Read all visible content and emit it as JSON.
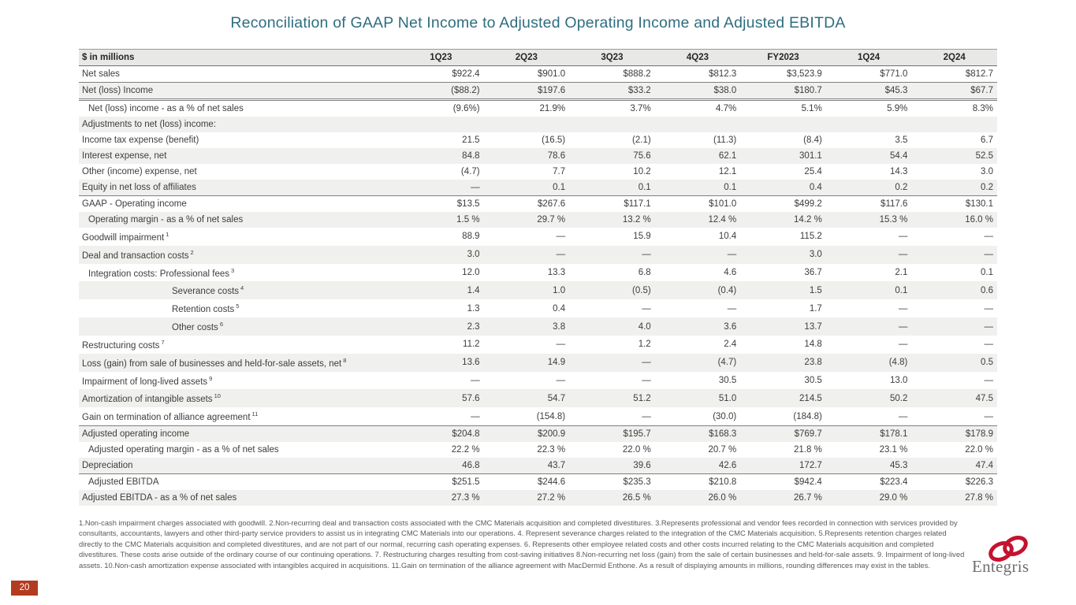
{
  "title": "Reconciliation of GAAP Net Income to Adjusted Operating Income and Adjusted EBITDA",
  "table": {
    "columns": [
      "$ in millions",
      "1Q23",
      "2Q23",
      "3Q23",
      "4Q23",
      "FY2023",
      "1Q24",
      "2Q24"
    ],
    "rows": [
      {
        "label": "Net sales",
        "sup": "",
        "indent": 0,
        "rule": "single",
        "values": [
          "$922.4",
          "$901.0",
          "$888.2",
          "$812.3",
          "$3,523.9",
          "$771.0",
          "$812.7"
        ]
      },
      {
        "label": "Net (loss) Income",
        "sup": "",
        "indent": 0,
        "rule": "double",
        "values": [
          "($88.2)",
          "$197.6",
          "$33.2",
          "$38.0",
          "$180.7",
          "$45.3",
          "$67.7"
        ]
      },
      {
        "label": "Net (loss) income - as a % of net sales",
        "sup": "",
        "indent": 1,
        "rule": "",
        "values": [
          "(9.6%)",
          "21.9%",
          "3.7%",
          "4.7%",
          "5.1%",
          "5.9%",
          "8.3%"
        ]
      },
      {
        "label": "Adjustments to net (loss) income:",
        "sup": "",
        "indent": 0,
        "rule": "",
        "values": [
          "",
          "",
          "",
          "",
          "",
          "",
          ""
        ]
      },
      {
        "label": "Income tax expense (benefit)",
        "sup": "",
        "indent": 0,
        "rule": "",
        "values": [
          "21.5",
          "(16.5)",
          "(2.1)",
          "(11.3)",
          "(8.4)",
          "3.5",
          "6.7"
        ]
      },
      {
        "label": "Interest expense, net",
        "sup": "",
        "indent": 0,
        "rule": "",
        "values": [
          "84.8",
          "78.6",
          "75.6",
          "62.1",
          "301.1",
          "54.4",
          "52.5"
        ]
      },
      {
        "label": "Other (income) expense, net",
        "sup": "",
        "indent": 0,
        "rule": "",
        "values": [
          "(4.7)",
          "7.7",
          "10.2",
          "12.1",
          "25.4",
          "14.3",
          "3.0"
        ]
      },
      {
        "label": "Equity in net loss of affiliates",
        "sup": "",
        "indent": 0,
        "rule": "single",
        "values": [
          "—",
          "0.1",
          "0.1",
          "0.1",
          "0.4",
          "0.2",
          "0.2"
        ]
      },
      {
        "label": "GAAP - Operating income",
        "sup": "",
        "indent": 0,
        "rule": "",
        "values": [
          "$13.5",
          "$267.6",
          "$117.1",
          "$101.0",
          "$499.2",
          "$117.6",
          "$130.1"
        ]
      },
      {
        "label": "Operating margin - as a % of net sales",
        "sup": "",
        "indent": 1,
        "rule": "",
        "values": [
          "1.5 %",
          "29.7 %",
          "13.2 %",
          "12.4 %",
          "14.2 %",
          "15.3 %",
          "16.0 %"
        ]
      },
      {
        "label": "Goodwill impairment",
        "sup": "1",
        "indent": 0,
        "rule": "",
        "values": [
          "88.9",
          "—",
          "15.9",
          "10.4",
          "115.2",
          "—",
          "—"
        ]
      },
      {
        "label": "Deal and transaction costs",
        "sup": "2",
        "indent": 0,
        "rule": "",
        "values": [
          "3.0",
          "—",
          "—",
          "—",
          "3.0",
          "—",
          "—"
        ]
      },
      {
        "label": "Integration costs: Professional fees",
        "sup": "3",
        "indent": 1,
        "rule": "",
        "values": [
          "12.0",
          "13.3",
          "6.8",
          "4.6",
          "36.7",
          "2.1",
          "0.1"
        ]
      },
      {
        "label": "Severance costs",
        "sup": "4",
        "indent": 2,
        "rule": "",
        "values": [
          "1.4",
          "1.0",
          "(0.5)",
          "(0.4)",
          "1.5",
          "0.1",
          "0.6"
        ]
      },
      {
        "label": "Retention costs",
        "sup": "5",
        "indent": 2,
        "rule": "",
        "values": [
          "1.3",
          "0.4",
          "—",
          "—",
          "1.7",
          "—",
          "—"
        ]
      },
      {
        "label": "Other costs",
        "sup": "6",
        "indent": 2,
        "rule": "",
        "values": [
          "2.3",
          "3.8",
          "4.0",
          "3.6",
          "13.7",
          "—",
          "—"
        ]
      },
      {
        "label": "Restructuring costs",
        "sup": "7",
        "indent": 0,
        "rule": "",
        "values": [
          "11.2",
          "—",
          "1.2",
          "2.4",
          "14.8",
          "—",
          "—"
        ]
      },
      {
        "label": "Loss (gain) from sale of businesses and held-for-sale assets, net",
        "sup": "8",
        "indent": 0,
        "rule": "",
        "values": [
          "13.6",
          "14.9",
          "—",
          "(4.7)",
          "23.8",
          "(4.8)",
          "0.5"
        ]
      },
      {
        "label": "Impairment of long-lived assets",
        "sup": "9",
        "indent": 0,
        "rule": "",
        "values": [
          "—",
          "—",
          "—",
          "30.5",
          "30.5",
          "13.0",
          "—"
        ]
      },
      {
        "label": "Amortization of intangible assets",
        "sup": "10",
        "indent": 0,
        "rule": "",
        "values": [
          "57.6",
          "54.7",
          "51.2",
          "51.0",
          "214.5",
          "50.2",
          "47.5"
        ]
      },
      {
        "label": "Gain on termination of alliance agreement",
        "sup": "11",
        "indent": 0,
        "rule": "single",
        "values": [
          "—",
          "(154.8)",
          "—",
          "(30.0)",
          "(184.8)",
          "—",
          "—"
        ]
      },
      {
        "label": "Adjusted operating income",
        "sup": "",
        "indent": 0,
        "rule": "",
        "values": [
          "$204.8",
          "$200.9",
          "$195.7",
          "$168.3",
          "$769.7",
          "$178.1",
          "$178.9"
        ]
      },
      {
        "label": "Adjusted operating margin - as a % of net sales",
        "sup": "",
        "indent": 1,
        "rule": "",
        "values": [
          "22.2 %",
          "22.3 %",
          "22.0 %",
          "20.7 %",
          "21.8 %",
          "23.1 %",
          "22.0 %"
        ]
      },
      {
        "label": "Depreciation",
        "sup": "",
        "indent": 0,
        "rule": "single",
        "values": [
          "46.8",
          "43.7",
          "39.6",
          "42.6",
          "172.7",
          "45.3",
          "47.4"
        ]
      },
      {
        "label": "Adjusted EBITDA",
        "sup": "",
        "indent": 1,
        "rule": "",
        "values": [
          "$251.5",
          "$244.6",
          "$235.3",
          "$210.8",
          "$942.4",
          "$223.4",
          "$226.3"
        ]
      },
      {
        "label": "Adjusted EBITDA - as a % of net sales",
        "sup": "",
        "indent": 0,
        "rule": "",
        "values": [
          "27.3 %",
          "27.2 %",
          "26.5 %",
          "26.0 %",
          "26.7 %",
          "29.0 %",
          "27.8 %"
        ]
      }
    ]
  },
  "footnotes": "1.Non-cash impairment charges associated with goodwill.  2.Non-recurring deal and transaction costs associated with the CMC Materials acquisition and completed divestitures.  3.Represents professional and vendor fees recorded in connection with services provided by consultants, accountants, lawyers and other third-party service providers to assist us in integrating CMC Materials into our operations.  4. Represent severance charges related to the integration of the CMC Materials acquisition.  5.Represents retention charges related directly to the CMC Materials acquisition and completed divestitures, and are not part of our normal, recurring cash operating expenses.  6. Represents other employee related costs and other costs incurred relating to the CMC Materials acquisition and completed divestitures.  These costs arise outside of the ordinary course of our continuing operations.  7. Restructuring charges resulting from cost-saving initiatives  8.Non-recurring net loss (gain) from the sale of certain businesses and held-for-sale assets. 9. Impairment of long-lived assets. 10.Non-cash amortization expense associated with intangibles acquired in acquisitions.  11.Gain on termination of the alliance agreement with MacDermid Enthone.  As a result of displaying amounts in millions, rounding differences may exist in the tables.",
  "page_number": "20",
  "logo": {
    "wordmark": "Entegris"
  },
  "colors": {
    "title_teal": "#2F6E80",
    "header_bg": "#E8E8E6",
    "stripe_bg": "#F0F0EE",
    "rule_gray": "#7F7F7F",
    "badge_red": "#B33B20",
    "logo_red": "#C41230",
    "logo_gray": "#6D6E71"
  }
}
